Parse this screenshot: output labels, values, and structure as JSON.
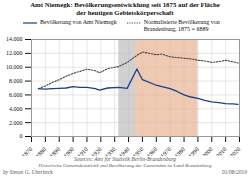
{
  "chart_data": {
    "type": "line",
    "title": "Amt Niemegk: Bevölkerungsentwicklung seit 1875 auf der Fläche",
    "subtitle": "der heutigen Gebietskörperschaft",
    "annotations": [
      "Sources: Amt für Statistik Berlin-Brandenburg",
      "Historische Gemeindestatistik und Bevölkerung der Gemeinden im Land Brandenburg",
      "by Simon G. Überbeck",
      "01/08/2019"
    ],
    "x": [
      1875,
      1880,
      1885,
      1890,
      1895,
      1900,
      1905,
      1910,
      1916,
      1919,
      1925,
      1933,
      1939,
      1946,
      1950,
      1960,
      1964,
      1970,
      1975,
      1980,
      1985,
      1990,
      1995,
      2000,
      2005,
      2010,
      2015,
      2019
    ],
    "series": [
      {
        "name": "Bevölkerung von Amt Niemegk",
        "color": "#1a3f8c",
        "line_style": "solid",
        "values": [
          6900,
          6850,
          6900,
          6950,
          7000,
          7200,
          7100,
          7100,
          6900,
          6700,
          7000,
          7100,
          6950,
          9750,
          8200,
          7400,
          7200,
          6900,
          6500,
          6000,
          5700,
          5500,
          5200,
          5000,
          4900,
          4750,
          4700,
          4650
        ]
      },
      {
        "name": "Normalisierte Bevölkerung von\nBrandenburg, 1875 = 6889",
        "color": "#444444",
        "line_style": "dotted",
        "values": [
          6900,
          7300,
          7800,
          8200,
          8700,
          9100,
          9400,
          9700,
          9500,
          9200,
          9800,
          10100,
          10700,
          11700,
          12200,
          11800,
          11900,
          11500,
          11400,
          11300,
          11200,
          11000,
          10900,
          10700,
          10800,
          11000,
          10800,
          10600
        ]
      }
    ],
    "regions": [
      {
        "start": 1933,
        "end": 1945,
        "color": "#c0c0c0"
      },
      {
        "start": 1945,
        "end": 1990,
        "color": "#e8b898"
      }
    ],
    "xlim": [
      1870,
      2020
    ],
    "xticks": [
      1870,
      1880,
      1890,
      1900,
      1910,
      1920,
      1930,
      1940,
      1950,
      1960,
      1970,
      1980,
      1990,
      2000,
      2010,
      2020
    ],
    "ylim": [
      0,
      14000
    ],
    "yticks": [
      0,
      {
        "value": 2000,
        "label": "2.000"
      },
      {
        "value": 4000,
        "label": "4.000"
      },
      {
        "value": 6000,
        "label": "6.000"
      },
      {
        "value": 8000,
        "label": "8.000"
      },
      {
        "value": 10000,
        "label": "10.000"
      },
      {
        "value": 12000,
        "label": "12.000"
      },
      {
        "value": 14000,
        "label": "14.000"
      }
    ],
    "grid": true
  }
}
